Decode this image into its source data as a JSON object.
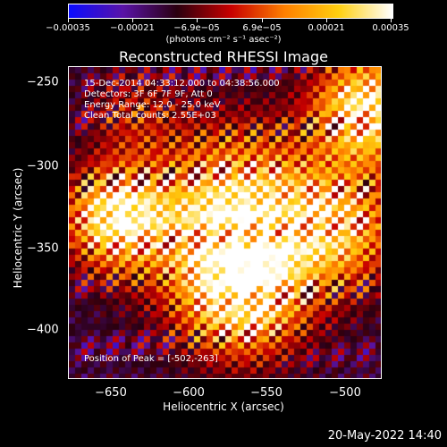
{
  "colorbar": {
    "ticks": [
      "−0.00035",
      "−0.00021",
      "−6.9e−05",
      "6.9e−05",
      "0.00021",
      "0.00035"
    ],
    "units": "(photons cm⁻² s⁻¹ asec⁻²)",
    "colors": [
      "#0c0cff",
      "#5a14a8",
      "#2b0010",
      "#c80000",
      "#ff8000",
      "#ffd010",
      "#ffffff"
    ]
  },
  "title": "Reconstructed RHESSI Image",
  "info": {
    "time": "15-Dec-2014 04:33:12.000 to 04:38:56.000",
    "detectors": "Detectors: 3F 6F 7F 9F, Att 0",
    "energy": "Energy Range: 12.0 - 25.0 keV",
    "clean": "Clean    Total counts: 2.55E+03"
  },
  "peak": "Position of Peak = [-502,-263]",
  "axes": {
    "xlabel": "Heliocentric X (arcsec)",
    "ylabel": "Heliocentric Y (arcsec)",
    "xticks": [
      "−650",
      "−600",
      "−550",
      "−500"
    ],
    "yticks": [
      "−250",
      "−300",
      "−350",
      "−400"
    ]
  },
  "stamp": "20-May-2022 14:40"
}
